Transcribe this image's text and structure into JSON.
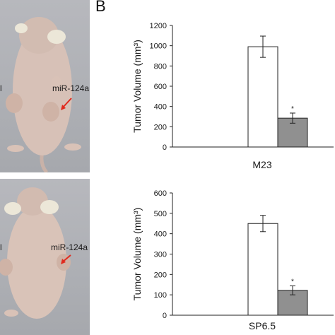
{
  "figure": {
    "panel_letter": "B",
    "photos": [
      {
        "label": "miR-124a",
        "left_edge_label": "l"
      },
      {
        "label": "miR-124a",
        "left_edge_label": "l"
      }
    ]
  },
  "chart_data": [
    {
      "type": "bar",
      "categories": [
        "M23"
      ],
      "xlabel": "M23",
      "ylabel": "Tumor Volume (mm³)",
      "ylim": [
        0,
        1200
      ],
      "yticks": [
        0,
        200,
        400,
        600,
        800,
        1000,
        1200
      ],
      "series": [
        {
          "values": [
            990
          ],
          "error": [
            105
          ],
          "color": "#ffffff",
          "marker": ""
        },
        {
          "values": [
            285
          ],
          "error": [
            50
          ],
          "color": "#909090",
          "marker": "*"
        }
      ],
      "grid": false
    },
    {
      "type": "bar",
      "categories": [
        "SP6.5"
      ],
      "xlabel": "SP6.5",
      "ylabel": "Tumor Volume (mm³)",
      "ylim": [
        0,
        600
      ],
      "yticks": [
        0,
        100,
        200,
        300,
        400,
        500,
        600
      ],
      "series": [
        {
          "values": [
            450
          ],
          "error": [
            40
          ],
          "color": "#ffffff",
          "marker": ""
        },
        {
          "values": [
            122
          ],
          "error": [
            22
          ],
          "color": "#909090",
          "marker": "*"
        }
      ],
      "grid": false
    }
  ]
}
